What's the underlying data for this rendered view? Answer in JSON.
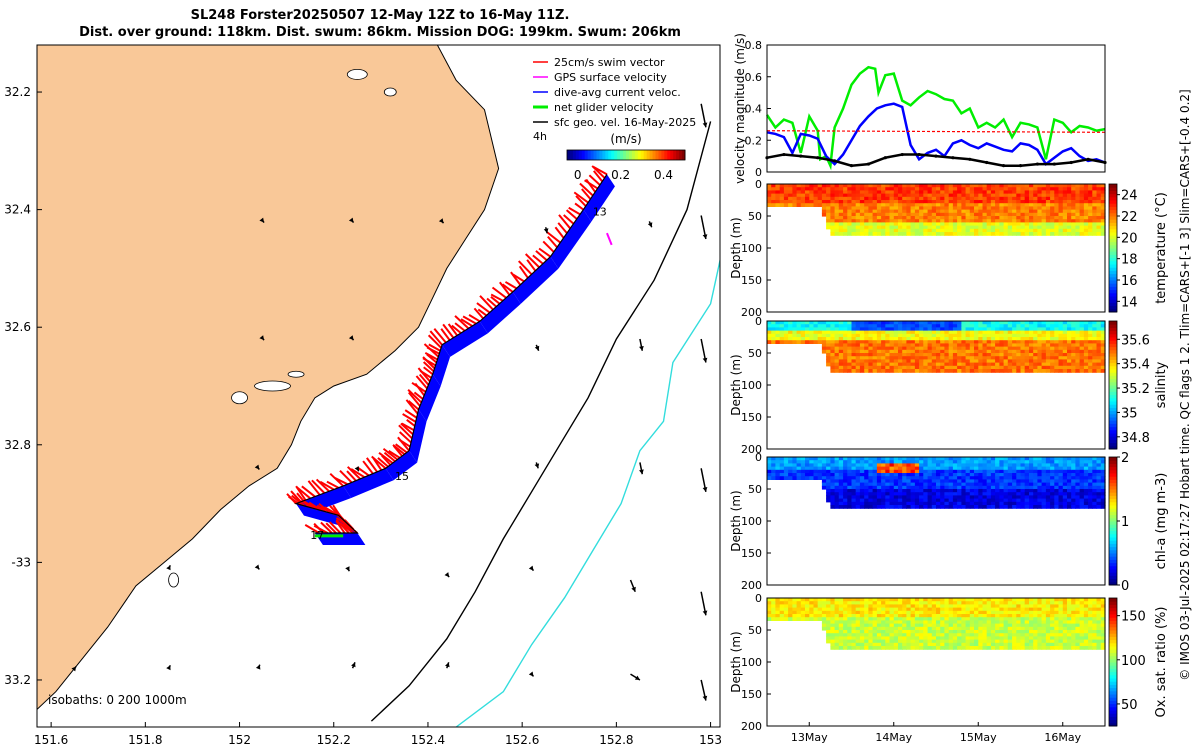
{
  "title": {
    "line1": "SL248 Forster20250507 12-May 12Z to 16-May 11Z.",
    "line2": "Dist. over ground: 118km. Dist. swum: 86km. Mission DOG: 199km. Swum: 206km"
  },
  "side_label": "© IMOS 03-Jul-2025 02:17:27 Hobart time. QC flags 1  2. Tlim=CARS+[-1 3] Slim=CARS+[-0.4 0.2]",
  "colors": {
    "land": "#f9c898",
    "swim": "#ff0000",
    "gps": "#ff00ff",
    "current": "#0000ff",
    "net": "#00ee00",
    "geo": "#000000",
    "isobath200": "#000000",
    "isobath1000": "#33dddd"
  },
  "chart_data": [
    {
      "type": "map",
      "xlim": [
        151.57,
        153.02
      ],
      "ylim": [
        -33.28,
        -32.12
      ],
      "x_ticks": [
        151.6,
        151.8,
        152,
        152.2,
        152.4,
        152.6,
        152.8,
        153
      ],
      "x_tick_labels": [
        "151.6",
        "151.8",
        "152",
        "152.2",
        "152.4",
        "152.6",
        "152.8",
        "153"
      ],
      "y_ticks": [
        -32.2,
        -32.4,
        -32.6,
        -32.8,
        -33,
        -33.2
      ],
      "y_tick_labels": [
        "32.2",
        "32.4",
        "32.6",
        "32.8",
        "-33",
        "33.2"
      ],
      "legend": [
        {
          "label": "25cm/s swim vector",
          "color": "#ff0000"
        },
        {
          "label": "GPS surface velocity",
          "color": "#ff00ff"
        },
        {
          "label": "dive-avg current veloc.",
          "color": "#0000ff"
        },
        {
          "label": "net glider velocity",
          "color": "#00ee00"
        },
        {
          "label": "sfc geo. vel. 16-May-2025",
          "color": "#000000"
        }
      ],
      "legend_extra": "4h",
      "colorbar": {
        "title": "(m/s)",
        "range": [
          -0.05,
          0.5
        ],
        "ticks": [
          0,
          0.2,
          0.4
        ],
        "tick_labels": [
          "0",
          "0.2",
          "0.4"
        ]
      },
      "isobath_label": "isobaths: 0   200   1000m",
      "track_annotations": [
        {
          "label": "13",
          "lon": 152.75,
          "lat": -32.41
        },
        {
          "label": "15",
          "lon": 152.33,
          "lat": -32.86
        },
        {
          "label": "17",
          "lon": 152.15,
          "lat": -32.96
        }
      ],
      "track": [
        [
          152.78,
          -32.34
        ],
        [
          152.73,
          -32.4
        ],
        [
          152.66,
          -32.48
        ],
        [
          152.58,
          -32.54
        ],
        [
          152.51,
          -32.59
        ],
        [
          152.43,
          -32.63
        ],
        [
          152.41,
          -32.68
        ],
        [
          152.38,
          -32.74
        ],
        [
          152.36,
          -32.81
        ],
        [
          152.31,
          -32.84
        ],
        [
          152.22,
          -32.87
        ],
        [
          152.12,
          -32.9
        ],
        [
          152.21,
          -32.92
        ],
        [
          152.25,
          -32.95
        ],
        [
          152.16,
          -32.95
        ]
      ],
      "isobath_200": [
        [
          153.0,
          -32.25
        ],
        [
          152.95,
          -32.4
        ],
        [
          152.88,
          -32.52
        ],
        [
          152.8,
          -32.62
        ],
        [
          152.74,
          -32.72
        ],
        [
          152.68,
          -32.8
        ],
        [
          152.62,
          -32.88
        ],
        [
          152.56,
          -32.96
        ],
        [
          152.5,
          -33.05
        ],
        [
          152.44,
          -33.13
        ],
        [
          152.36,
          -33.21
        ],
        [
          152.28,
          -33.27
        ]
      ],
      "isobath_1000": [
        [
          153.03,
          -32.45
        ],
        [
          153.0,
          -32.56
        ],
        [
          152.92,
          -32.66
        ],
        [
          152.9,
          -32.76
        ],
        [
          152.85,
          -32.81
        ],
        [
          152.81,
          -32.9
        ],
        [
          152.75,
          -32.98
        ],
        [
          152.69,
          -33.06
        ],
        [
          152.62,
          -33.14
        ],
        [
          152.56,
          -33.22
        ],
        [
          152.46,
          -33.28
        ]
      ],
      "geo_vectors": [
        [
          152.98,
          -32.22,
          0.01,
          -0.04
        ],
        [
          152.98,
          -32.41,
          0.01,
          -0.04
        ],
        [
          152.98,
          -32.62,
          0.01,
          -0.04
        ],
        [
          152.98,
          -32.84,
          0.01,
          -0.04
        ],
        [
          152.98,
          -33.05,
          0.01,
          -0.04
        ],
        [
          152.98,
          -33.2,
          0.01,
          -0.035
        ],
        [
          152.87,
          -32.42,
          0.005,
          -0.01
        ],
        [
          152.85,
          -32.62,
          0.005,
          -0.02
        ],
        [
          152.85,
          -32.83,
          0.005,
          -0.02
        ],
        [
          152.83,
          -33.03,
          0.01,
          -0.02
        ],
        [
          152.83,
          -33.19,
          0.02,
          -0.01
        ],
        [
          152.65,
          -32.43,
          0.003,
          -0.01
        ],
        [
          152.63,
          -32.63,
          0.005,
          -0.01
        ],
        [
          152.63,
          -32.83,
          0.004,
          -0.01
        ],
        [
          152.62,
          -33.01,
          0.004,
          -0.004
        ],
        [
          152.62,
          -33.19,
          0.004,
          -0.004
        ],
        [
          152.43,
          -32.42,
          0.003,
          -0.003
        ],
        [
          152.44,
          -33.02,
          0.005,
          -0.005
        ],
        [
          152.44,
          -33.18,
          0.004,
          0.01
        ],
        [
          152.24,
          -32.42,
          0.002,
          -0.002
        ],
        [
          152.24,
          -32.62,
          0.002,
          -0.002
        ],
        [
          152.25,
          -32.84,
          0.003,
          -0.005
        ],
        [
          152.23,
          -33.01,
          0.003,
          -0.005
        ],
        [
          152.24,
          -33.18,
          0.005,
          0.01
        ],
        [
          152.05,
          -32.42,
          0.002,
          -0.002
        ],
        [
          152.05,
          -32.62,
          0.002,
          -0.002
        ],
        [
          152.04,
          -32.84,
          0.002,
          -0.002
        ],
        [
          152.04,
          -33.01,
          0.002,
          -0.002
        ],
        [
          152.04,
          -33.18,
          0.003,
          0.006
        ],
        [
          151.85,
          -33.01,
          0.003,
          0.005
        ],
        [
          151.85,
          -33.18,
          0.003,
          0.005
        ],
        [
          151.65,
          -33.18,
          0.003,
          0.003
        ]
      ]
    },
    {
      "type": "line",
      "ylabel": "velocity magnitude (m/s)",
      "xlim": [
        12.5,
        16.5
      ],
      "ylim": [
        0,
        0.8
      ],
      "y_ticks": [
        0,
        0.2,
        0.4,
        0.6,
        0.8
      ],
      "y_tick_labels": [
        "0",
        "0.2",
        "0.4",
        "0.6",
        "0.8"
      ],
      "series": [
        {
          "name": "net glider velocity",
          "color": "#00ee00",
          "x": [
            12.5,
            12.6,
            12.7,
            12.8,
            12.9,
            13.0,
            13.1,
            13.13,
            13.2,
            13.25,
            13.3,
            13.4,
            13.5,
            13.6,
            13.7,
            13.78,
            13.82,
            13.9,
            14.0,
            14.1,
            14.2,
            14.3,
            14.4,
            14.5,
            14.6,
            14.7,
            14.8,
            14.9,
            15.0,
            15.1,
            15.2,
            15.3,
            15.4,
            15.5,
            15.6,
            15.7,
            15.8,
            15.9,
            16.0,
            16.1,
            16.2,
            16.3,
            16.4,
            16.5
          ],
          "values": [
            0.36,
            0.28,
            0.33,
            0.31,
            0.12,
            0.35,
            0.26,
            0.08,
            0.1,
            0.04,
            0.28,
            0.4,
            0.55,
            0.62,
            0.66,
            0.65,
            0.5,
            0.61,
            0.62,
            0.45,
            0.42,
            0.47,
            0.51,
            0.49,
            0.46,
            0.45,
            0.37,
            0.4,
            0.28,
            0.31,
            0.28,
            0.33,
            0.22,
            0.31,
            0.3,
            0.28,
            0.08,
            0.33,
            0.31,
            0.25,
            0.29,
            0.28,
            0.26,
            0.27
          ]
        },
        {
          "name": "dive-avg current veloc.",
          "color": "#0000ff",
          "x": [
            12.5,
            12.6,
            12.7,
            12.8,
            12.9,
            13.0,
            13.1,
            13.2,
            13.3,
            13.4,
            13.5,
            13.6,
            13.7,
            13.8,
            13.9,
            14.0,
            14.1,
            14.2,
            14.3,
            14.4,
            14.5,
            14.6,
            14.7,
            14.8,
            14.9,
            15.0,
            15.1,
            15.2,
            15.3,
            15.4,
            15.5,
            15.6,
            15.7,
            15.8,
            15.9,
            16.0,
            16.1,
            16.2,
            16.3,
            16.4,
            16.5
          ],
          "values": [
            0.25,
            0.24,
            0.22,
            0.12,
            0.24,
            0.23,
            0.21,
            0.1,
            0.05,
            0.11,
            0.2,
            0.29,
            0.35,
            0.4,
            0.42,
            0.43,
            0.41,
            0.17,
            0.08,
            0.12,
            0.14,
            0.1,
            0.18,
            0.2,
            0.17,
            0.15,
            0.18,
            0.16,
            0.14,
            0.13,
            0.18,
            0.17,
            0.14,
            0.05,
            0.09,
            0.13,
            0.15,
            0.1,
            0.07,
            0.08,
            0.06
          ]
        },
        {
          "name": "swim",
          "color": "#ff0000",
          "dashed": true,
          "x": [
            12.5,
            16.5
          ],
          "values": [
            0.26,
            0.25
          ]
        },
        {
          "name": "sfc geo. vel.",
          "color": "#000000",
          "x": [
            12.5,
            12.7,
            12.9,
            13.1,
            13.3,
            13.5,
            13.7,
            13.9,
            14.1,
            14.3,
            14.5,
            14.7,
            14.9,
            15.1,
            15.3,
            15.5,
            15.7,
            15.9,
            16.1,
            16.3,
            16.5
          ],
          "values": [
            0.09,
            0.11,
            0.1,
            0.09,
            0.07,
            0.04,
            0.05,
            0.09,
            0.11,
            0.11,
            0.1,
            0.09,
            0.08,
            0.06,
            0.04,
            0.04,
            0.05,
            0.05,
            0.06,
            0.08,
            0.06
          ]
        }
      ]
    },
    {
      "type": "heatmap",
      "variable": "temperature",
      "ylabel": "Depth (m)",
      "colorbar_label": "temperature (°C)",
      "range": [
        13,
        25
      ],
      "cb_ticks": [
        14,
        16,
        18,
        20,
        22,
        24
      ],
      "ylim": [
        0,
        200
      ],
      "y_ticks": [
        0,
        50,
        100,
        150,
        200
      ],
      "profile": {
        "x": [
          12.5,
          13.15,
          13.25,
          16.5
        ],
        "max_depth": [
          35,
          35,
          80,
          80
        ]
      },
      "layers": [
        {
          "to": 30,
          "value": 22.8
        },
        {
          "to": 60,
          "value": 22.0
        },
        {
          "to": 80,
          "value": 20.2
        }
      ]
    },
    {
      "type": "heatmap",
      "variable": "salinity",
      "ylabel": "Depth (m)",
      "colorbar_label": "salinity",
      "range": [
        34.7,
        35.75
      ],
      "cb_ticks": [
        34.8,
        35,
        35.2,
        35.4,
        35.6
      ],
      "ylim": [
        0,
        200
      ],
      "y_ticks": [
        0,
        50,
        100,
        150,
        200
      ],
      "profile": {
        "x": [
          12.5,
          13.15,
          13.25,
          16.5
        ],
        "max_depth": [
          35,
          35,
          80,
          80
        ]
      },
      "layers": [
        {
          "to": 15,
          "value": 35.1
        },
        {
          "to": 30,
          "value": 35.35
        },
        {
          "to": 80,
          "value": 35.5
        }
      ]
    },
    {
      "type": "heatmap",
      "variable": "chl-a",
      "ylabel": "Depth (m)",
      "colorbar_label": "chl-a (mg m-3)",
      "range": [
        0,
        2
      ],
      "cb_ticks": [
        0,
        1,
        2
      ],
      "ylim": [
        0,
        200
      ],
      "y_ticks": [
        0,
        50,
        100,
        150,
        200
      ],
      "profile": {
        "x": [
          12.5,
          13.15,
          13.25,
          16.5
        ],
        "max_depth": [
          35,
          35,
          80,
          80
        ]
      },
      "layers": [
        {
          "to": 20,
          "value": 0.55
        },
        {
          "to": 50,
          "value": 0.35
        },
        {
          "to": 80,
          "value": 0.2
        }
      ]
    },
    {
      "type": "heatmap",
      "variable": "oxygen",
      "ylabel": "Depth (m)",
      "colorbar_label": "Ox. sat. ratio (%)",
      "range": [
        25,
        170
      ],
      "cb_ticks": [
        50,
        100,
        150
      ],
      "ylim": [
        0,
        200
      ],
      "y_ticks": [
        0,
        50,
        100,
        150,
        200
      ],
      "profile": {
        "x": [
          12.5,
          13.15,
          13.25,
          16.5
        ],
        "max_depth": [
          35,
          35,
          80,
          80
        ]
      },
      "layers": [
        {
          "to": 30,
          "value": 118
        },
        {
          "to": 80,
          "value": 108
        }
      ],
      "x_ticks": [
        13,
        14,
        15,
        16
      ],
      "x_tick_labels": [
        "13May",
        "14May",
        "15May",
        "16May"
      ]
    }
  ]
}
